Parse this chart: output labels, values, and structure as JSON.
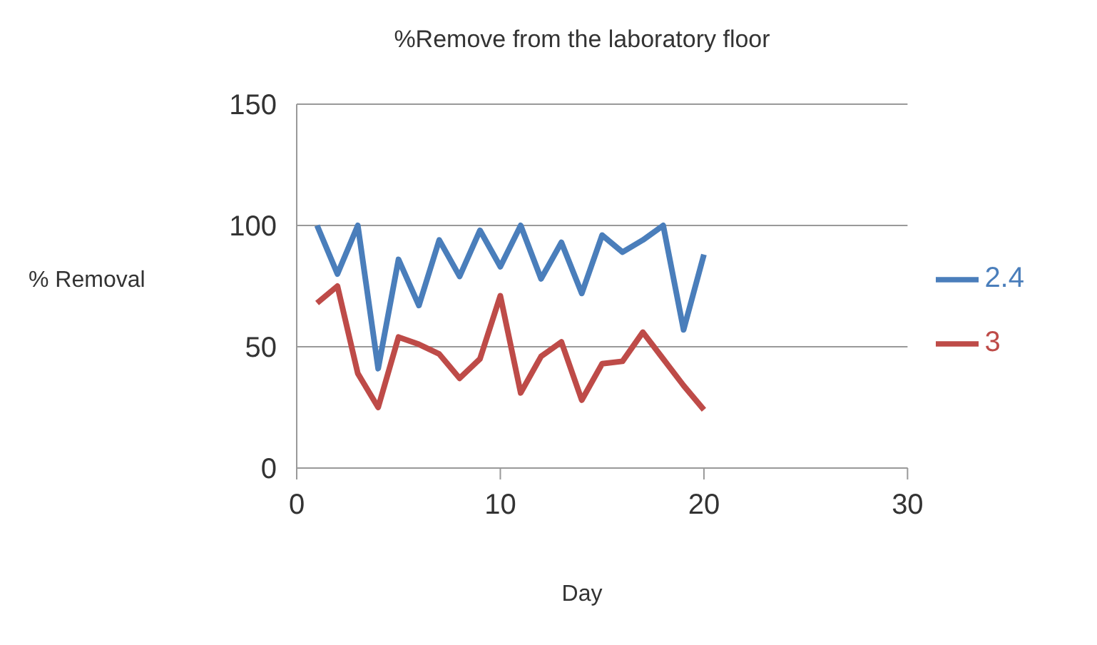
{
  "chart_data": {
    "type": "line",
    "title": "%Remove from the laboratory floor",
    "xlabel": "Day",
    "ylabel": "% Removal",
    "x": [
      1,
      2,
      3,
      4,
      5,
      6,
      7,
      8,
      9,
      10,
      11,
      12,
      13,
      14,
      15,
      16,
      17,
      18,
      19,
      20
    ],
    "series": [
      {
        "name": "2.4",
        "color": "#4a7ebb",
        "values": [
          100,
          80,
          100,
          41,
          86,
          67,
          94,
          79,
          98,
          83,
          100,
          78,
          93,
          72,
          96,
          89,
          94,
          100,
          57,
          88
        ]
      },
      {
        "name": "3",
        "color": "#be4b48",
        "values": [
          68,
          75,
          39,
          25,
          54,
          51,
          47,
          37,
          45,
          71,
          31,
          46,
          52,
          28,
          43,
          44,
          56,
          45,
          34,
          24
        ]
      }
    ],
    "xlim": [
      0,
      30
    ],
    "xticks": [
      0,
      10,
      20,
      30
    ],
    "ylim": [
      0,
      150
    ],
    "yticks": [
      0,
      50,
      100,
      150
    ],
    "grid": "y",
    "legend": "right",
    "marker": "none",
    "line_style": "solid"
  }
}
